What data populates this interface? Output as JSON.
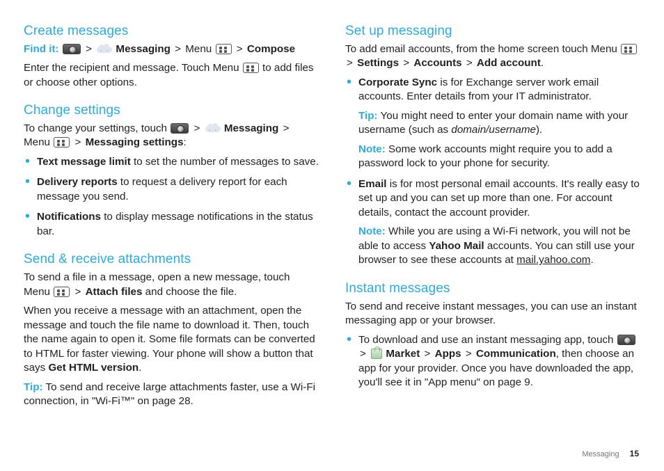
{
  "left": {
    "s1": {
      "title": "Create messages",
      "find_label": "Find it:",
      "p1_a": "Messaging",
      "p1_b": "Menu",
      "p1_c": "Compose",
      "p2": "Enter the recipient and message. Touch Menu",
      "p2_tail": "to add files or choose other options."
    },
    "s2": {
      "title": "Change settings",
      "p1_a": "To change your settings, touch",
      "p1_b": "Messaging",
      "p1_c": "Menu",
      "p1_d": "Messaging settings",
      "b1_bold": "Text message limit",
      "b1_rest": " to set the number of messages to save.",
      "b2_bold": "Delivery reports",
      "b2_rest": " to request a delivery report for each message you send.",
      "b3_bold": "Notifications",
      "b3_rest": " to display message notifications in the status bar."
    },
    "s3": {
      "title": "Send & receive attachments",
      "p1_a": "To send a file in a message, open a new message, touch Menu",
      "p1_b": "Attach files",
      "p1_c": " and choose the file.",
      "p2_a": "When you receive a message with an attachment, open the message and touch the file name to download it. Then, touch the name again to open it. Some file formats can be converted to HTML for faster viewing. Your phone will show a button that says ",
      "p2_b": "Get HTML version",
      "tip_label": "Tip:",
      "tip_text": " To send and receive large attachments faster, use a Wi-Fi connection, in \"Wi-Fi™\" on page 28."
    }
  },
  "right": {
    "s1": {
      "title": "Set up messaging",
      "p1_a": "To add email accounts, from the home screen touch Menu",
      "p1_b": "Settings",
      "p1_c": "Accounts",
      "p1_d": "Add account",
      "b1_bold": "Corporate Sync",
      "b1_rest": " is for Exchange server work email accounts. Enter details from your IT administrator.",
      "b1_tip_label": "Tip:",
      "b1_tip_text": " You might need to enter your domain name with your username (such as ",
      "b1_tip_italic": "domain/username",
      "b1_tip_tail": ").",
      "b1_note_label": "Note:",
      "b1_note_text": " Some work accounts might require you to add a password lock to your phone for security.",
      "b2_bold": "Email",
      "b2_rest": " is for most personal email accounts. It's really easy to set up and you can set up more than one. For account details, contact the account provider.",
      "b2_note_label": "Note:",
      "b2_note_a": " While you are using a Wi-Fi network, you will not be able to access ",
      "b2_note_bold": "Yahoo Mail",
      "b2_note_b": " accounts. You can still use your browser to see these accounts at ",
      "b2_note_link": "mail.yahoo.com",
      "b2_note_tail": "."
    },
    "s2": {
      "title": "Instant messages",
      "p1": "To send and receive instant messages, you can use an instant messaging app or your browser.",
      "b1_a": "To download and use an instant messaging app, touch",
      "b1_market": "Market",
      "b1_apps": "Apps",
      "b1_comm": "Communication",
      "b1_tail": ", then choose an app for your provider. Once you have downloaded the app, you'll see it in \"App menu\" on page 9."
    }
  },
  "footer": {
    "section": "Messaging",
    "page": "15"
  }
}
